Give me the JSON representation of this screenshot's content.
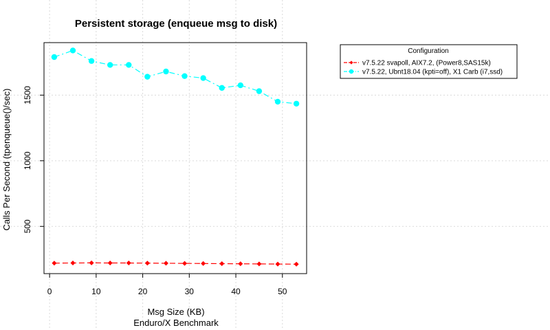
{
  "chart_data": {
    "type": "line",
    "title": "Persistent storage (enqueue msg to disk)",
    "xlabel": "Msg Size (KB)",
    "xlabel2": "Enduro/X Benchmark",
    "ylabel": "Calls Per Second (tpenqueue()/sec)",
    "x": [
      1,
      5,
      9,
      13,
      17,
      21,
      25,
      29,
      33,
      37,
      41,
      45,
      49,
      53
    ],
    "xlim": [
      -1.2,
      55.2
    ],
    "ylim": [
      140,
      1900
    ],
    "xticks": [
      0,
      10,
      20,
      30,
      40,
      50
    ],
    "yticks": [
      500,
      1000,
      1500
    ],
    "grid": true,
    "legend": {
      "title": "Configuration",
      "placement": "top-right"
    },
    "series": [
      {
        "name": "v7.5.22 svapoll, AIX7.2, (Power8,SAS15k)",
        "color": "#ff0000",
        "marker": "diamond",
        "linestyle": "dashed",
        "values": [
          220,
          221,
          222,
          221,
          221,
          220,
          219,
          218,
          217,
          216,
          215,
          214,
          213,
          212
        ]
      },
      {
        "name": "v7.5.22, Ubnt18.04 (kpti=off), X1 Carb (i7,ssd)",
        "color": "#00ffff",
        "marker": "circle",
        "linestyle": "dashdot",
        "values": [
          1790,
          1840,
          1760,
          1730,
          1730,
          1640,
          1680,
          1645,
          1630,
          1555,
          1575,
          1530,
          1450,
          1435
        ]
      }
    ]
  }
}
